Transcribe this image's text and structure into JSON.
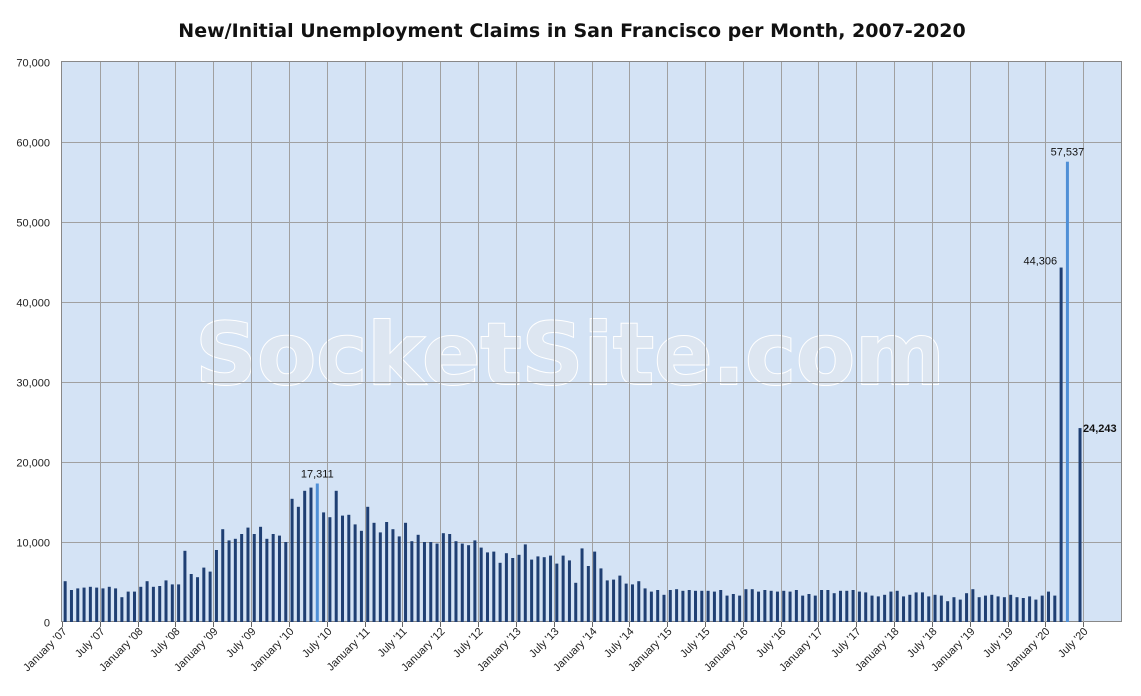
{
  "chart_data": {
    "type": "bar",
    "title": "New/Initial Unemployment Claims in San Francisco per Month, 2007-2020",
    "xlabel": "",
    "ylabel": "",
    "ylim": [
      0,
      70000
    ],
    "yticks": [
      0,
      10000,
      20000,
      30000,
      40000,
      50000,
      60000,
      70000
    ],
    "ytick_labels": [
      "0",
      "10,000",
      "20,000",
      "30,000",
      "40,000",
      "50,000",
      "60,000",
      "70,000"
    ],
    "grid": true,
    "legend": "none",
    "x_tick_labels": [
      "January '07",
      "July '07",
      "January '08",
      "July '08",
      "January '09",
      "July '09",
      "January '10",
      "July '10",
      "January '11",
      "July '11",
      "January '12",
      "July '12",
      "January '13",
      "July '13",
      "January '14",
      "July '14",
      "January '15",
      "July '15",
      "January '16",
      "July '16",
      "January '17",
      "July '17",
      "January '18",
      "July '18",
      "January '19",
      "July '19",
      "January '20",
      "July '20"
    ],
    "x_start": "January '07",
    "watermark": "SocketSite.com",
    "colors": {
      "bar": "#1f3f73",
      "highlight": "#4f8fd6",
      "plot_bg": "#d4e3f5",
      "grid": "#a0a0a0"
    },
    "values": [
      5100,
      4000,
      4200,
      4300,
      4400,
      4300,
      4200,
      4400,
      4200,
      3100,
      3800,
      3800,
      4400,
      5100,
      4400,
      4500,
      5200,
      4700,
      4700,
      8900,
      6000,
      5600,
      6800,
      6300,
      9000,
      11600,
      10200,
      10400,
      11000,
      11800,
      11000,
      11900,
      10400,
      11000,
      10800,
      10000,
      15400,
      14400,
      16400,
      16800,
      17311,
      13700,
      13100,
      16400,
      13300,
      13400,
      12200,
      11400,
      14400,
      12400,
      11200,
      12500,
      11600,
      10700,
      12400,
      10100,
      10900,
      10000,
      10000,
      9800,
      11100,
      11000,
      10100,
      9800,
      9600,
      10200,
      9300,
      8700,
      8800,
      7400,
      8600,
      8000,
      8400,
      9700,
      7800,
      8200,
      8100,
      8300,
      7300,
      8300,
      7700,
      4900,
      9200,
      7000,
      8800,
      6700,
      5200,
      5300,
      5800,
      4800,
      4700,
      5100,
      4200,
      3800,
      4000,
      3400,
      4000,
      4100,
      3900,
      4000,
      3900,
      3900,
      3900,
      3800,
      4000,
      3300,
      3500,
      3300,
      4100,
      4100,
      3800,
      4000,
      3900,
      3800,
      3900,
      3800,
      4000,
      3300,
      3500,
      3300,
      4000,
      4000,
      3600,
      3900,
      3900,
      4000,
      3800,
      3700,
      3300,
      3200,
      3400,
      3800,
      3900,
      3200,
      3400,
      3700,
      3700,
      3200,
      3400,
      3300,
      2600,
      3100,
      2800,
      3600,
      4100,
      3100,
      3300,
      3400,
      3200,
      3100,
      3400,
      3100,
      3000,
      3200,
      2800,
      3300,
      3800,
      3300,
      44306,
      57537,
      0,
      24243
    ],
    "highlighted_indices": [
      40,
      159
    ],
    "annotations": [
      {
        "index": 40,
        "text": "17,311",
        "bold": false
      },
      {
        "index": 158,
        "text": "44,306",
        "bold": false
      },
      {
        "index": 159,
        "text": "57,537",
        "bold": false
      },
      {
        "index": 161,
        "text": "24,243",
        "bold": true
      }
    ]
  }
}
